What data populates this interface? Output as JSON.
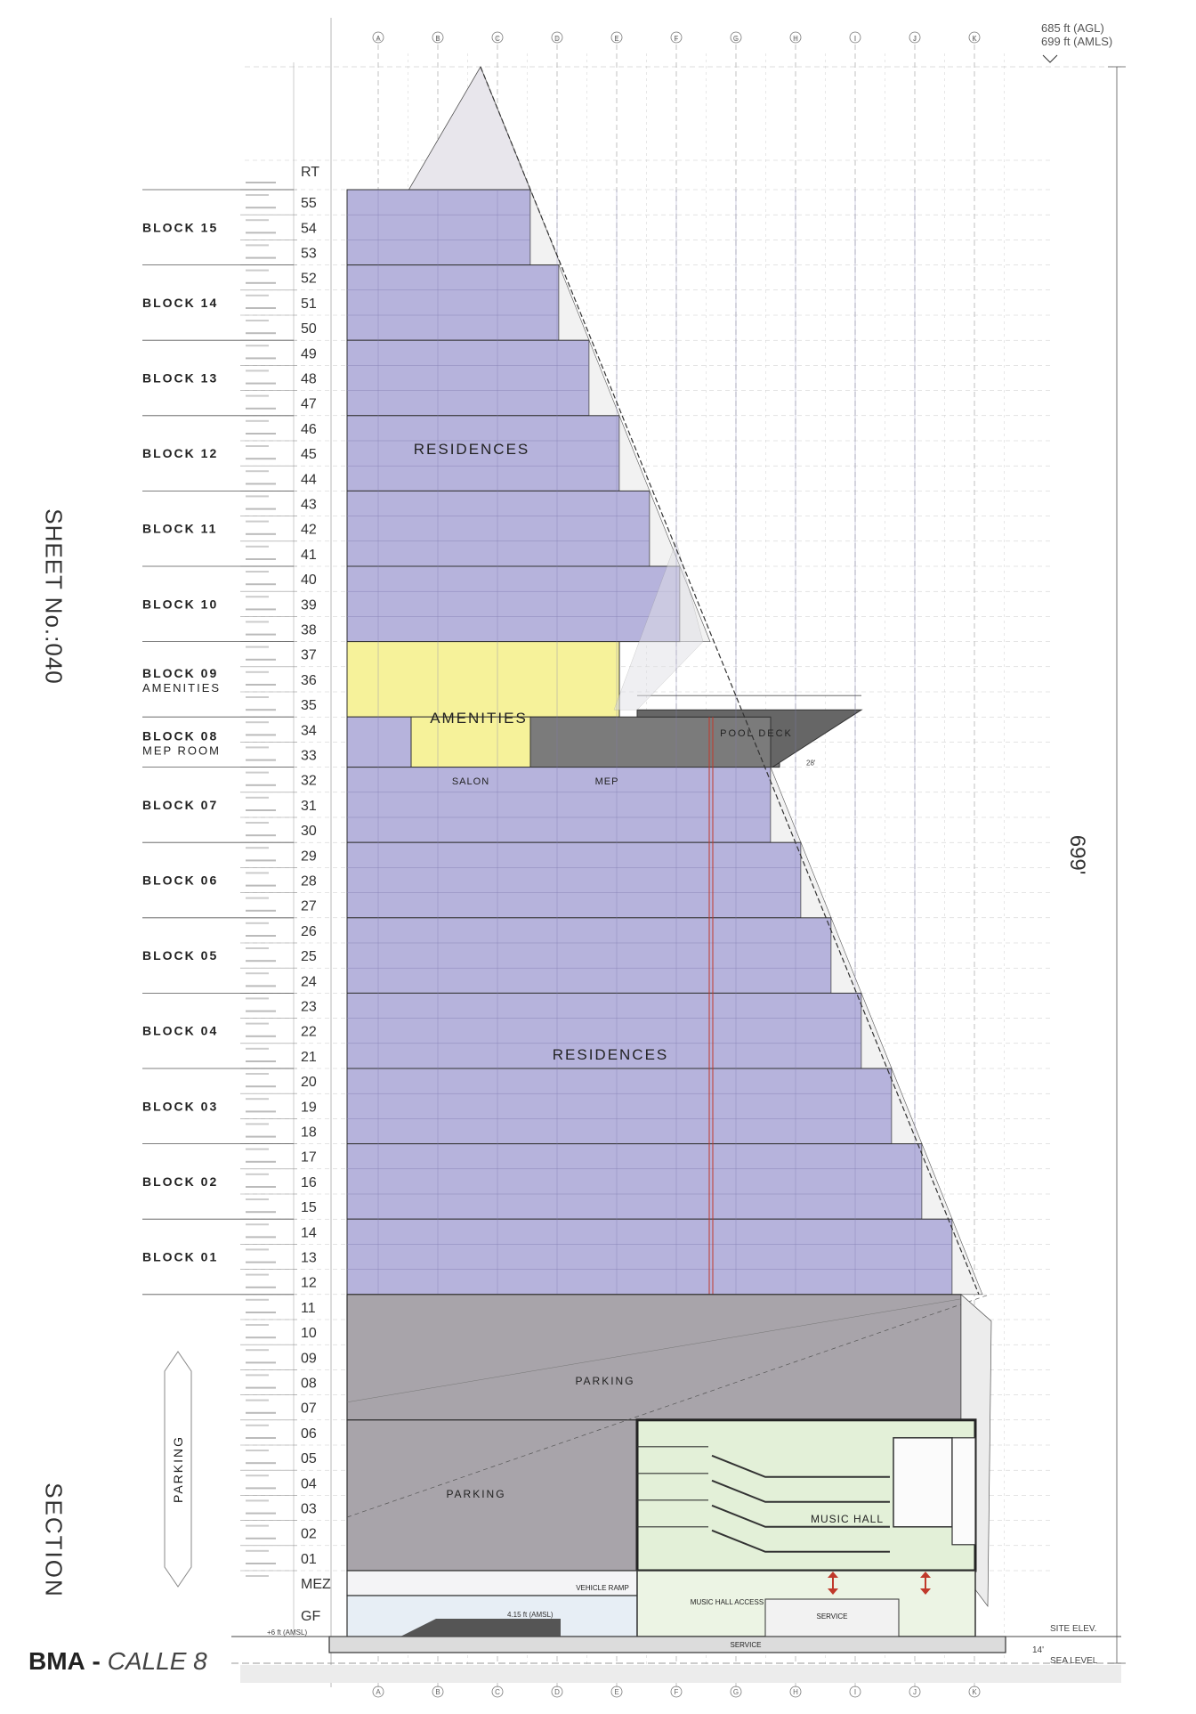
{
  "sheet": {
    "label": "SHEET No.:040",
    "section_label": "SECTION"
  },
  "title": {
    "code": "BMA",
    "separator": "-",
    "name": "CALLE 8"
  },
  "height_note": {
    "agl": "685 ft (AGL)",
    "amls": "699 ft (AMLS)"
  },
  "total_height_label": "699'",
  "grid_columns": [
    "A",
    "B",
    "C",
    "D",
    "E",
    "F",
    "G",
    "H",
    "I",
    "J",
    "K"
  ],
  "levels": [
    "RT",
    "55",
    "54",
    "53",
    "52",
    "51",
    "50",
    "49",
    "48",
    "47",
    "46",
    "45",
    "44",
    "43",
    "42",
    "41",
    "40",
    "39",
    "38",
    "37",
    "36",
    "35",
    "34",
    "33",
    "32",
    "31",
    "30",
    "29",
    "28",
    "27",
    "26",
    "25",
    "24",
    "23",
    "22",
    "21",
    "20",
    "19",
    "18",
    "17",
    "16",
    "15",
    "14",
    "13",
    "12",
    "11",
    "10",
    "09",
    "08",
    "07",
    "06",
    "05",
    "04",
    "03",
    "02",
    "01",
    "MEZ",
    "GF"
  ],
  "blocks": [
    {
      "name": "BLOCK 15",
      "sub": ""
    },
    {
      "name": "BLOCK 14",
      "sub": ""
    },
    {
      "name": "BLOCK 13",
      "sub": ""
    },
    {
      "name": "BLOCK 12",
      "sub": ""
    },
    {
      "name": "BLOCK 11",
      "sub": ""
    },
    {
      "name": "BLOCK 10",
      "sub": ""
    },
    {
      "name": "BLOCK 09",
      "sub": "AMENITIES"
    },
    {
      "name": "BLOCK 08",
      "sub": "MEP ROOM"
    },
    {
      "name": "BLOCK 07",
      "sub": ""
    },
    {
      "name": "BLOCK 06",
      "sub": ""
    },
    {
      "name": "BLOCK 05",
      "sub": ""
    },
    {
      "name": "BLOCK 04",
      "sub": ""
    },
    {
      "name": "BLOCK 03",
      "sub": ""
    },
    {
      "name": "BLOCK 02",
      "sub": ""
    },
    {
      "name": "BLOCK 01",
      "sub": ""
    }
  ],
  "labels": {
    "residences_upper": "RESIDENCES",
    "residences_lower": "RESIDENCES",
    "amenities": "AMENITIES",
    "salon": "SALON",
    "mep": "MEP",
    "pool_deck": "POOL DECK",
    "parking_upper": "PARKING",
    "parking_lower": "PARKING",
    "parking_side": "PARKING",
    "music_hall": "MUSIC HALL",
    "vehicle_ramp": "VEHICLE RAMP",
    "music_hall_access": "MUSIC HALL ACCESS",
    "service": "SERVICE",
    "service_upper": "SERVICE",
    "site_elev": "SITE ELEV.",
    "sea_level": "SEA LEVEL",
    "ground_note": "4.15 ft (AMSL)",
    "dim_14": "14'",
    "dim_6": "+6 ft (AMSL)",
    "dim_28": "28'"
  },
  "colors": {
    "residences": "#b6b3dc",
    "amenities": "#f6f29a",
    "salon": "#f6f29a",
    "mep": "#7b7b7b",
    "parking": "#a8a4aa",
    "music_hall": "#e3f0d8",
    "grid": "#9a9a9a",
    "red_line": "#c0392b"
  }
}
